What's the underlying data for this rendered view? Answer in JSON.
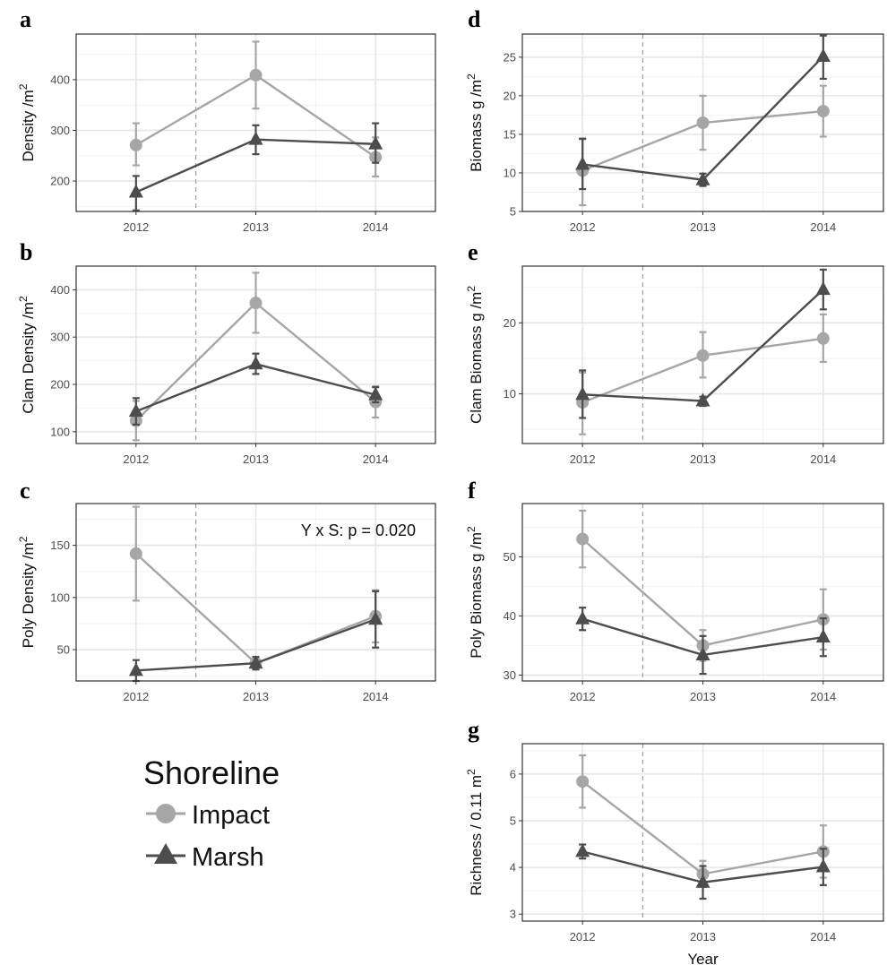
{
  "colors": {
    "impact": "#a6a6a6",
    "marsh": "#4d4d4d",
    "grid": "#e6e6e6",
    "frame": "#333333",
    "divider": "#8c8c8c"
  },
  "legend": {
    "title": "Shoreline",
    "items": [
      {
        "label": "Impact",
        "shape": "circle",
        "color": "#a6a6a6"
      },
      {
        "label": "Marsh",
        "shape": "triangle",
        "color": "#4d4d4d"
      }
    ]
  },
  "chart_data": [
    {
      "id": "a",
      "panel_label": "a",
      "type": "line",
      "ylabel": "Density /m",
      "ylabel_sup": "2",
      "xlabel": "",
      "x": [
        "2012",
        "2013",
        "2014"
      ],
      "ylim": [
        140,
        490
      ],
      "yticks": [
        200,
        300,
        400
      ],
      "annotation": "",
      "series": [
        {
          "name": "Impact",
          "values": [
            271,
            409,
            247
          ],
          "lower": [
            231,
            343,
            209
          ],
          "upper": [
            314,
            475,
            286
          ]
        },
        {
          "name": "Marsh",
          "values": [
            178,
            282,
            273
          ],
          "lower": [
            142,
            253,
            236
          ],
          "upper": [
            210,
            310,
            314
          ]
        }
      ]
    },
    {
      "id": "d",
      "panel_label": "d",
      "type": "line",
      "ylabel": "Biomass g /m",
      "ylabel_sup": "2",
      "xlabel": "",
      "x": [
        "2012",
        "2013",
        "2014"
      ],
      "ylim": [
        5,
        28
      ],
      "yticks": [
        5,
        10,
        15,
        20,
        25
      ],
      "annotation": "",
      "series": [
        {
          "name": "Impact",
          "values": [
            10.3,
            16.5,
            18.0
          ],
          "lower": [
            5.8,
            13.0,
            14.7
          ],
          "upper": [
            14.5,
            20.0,
            21.3
          ]
        },
        {
          "name": "Marsh",
          "values": [
            11.1,
            9.1,
            25.1
          ],
          "lower": [
            7.9,
            8.3,
            22.2
          ],
          "upper": [
            14.4,
            9.9,
            27.8
          ]
        }
      ]
    },
    {
      "id": "b",
      "panel_label": "b",
      "type": "line",
      "ylabel": "Clam Density /m",
      "ylabel_sup": "2",
      "xlabel": "",
      "x": [
        "2012",
        "2013",
        "2014"
      ],
      "ylim": [
        75,
        450
      ],
      "yticks": [
        100,
        200,
        300,
        400
      ],
      "annotation": "",
      "series": [
        {
          "name": "Impact",
          "values": [
            123,
            372,
            163
          ],
          "lower": [
            82,
            309,
            130
          ],
          "upper": [
            165,
            436,
            196
          ]
        },
        {
          "name": "Marsh",
          "values": [
            143,
            243,
            178
          ],
          "lower": [
            115,
            222,
            162
          ],
          "upper": [
            171,
            265,
            194
          ]
        }
      ]
    },
    {
      "id": "e",
      "panel_label": "e",
      "type": "line",
      "ylabel": "Clam Biomass g /m",
      "ylabel_sup": "2",
      "xlabel": "",
      "x": [
        "2012",
        "2013",
        "2014"
      ],
      "ylim": [
        3,
        28
      ],
      "yticks": [
        10,
        20
      ],
      "annotation": "",
      "series": [
        {
          "name": "Impact",
          "values": [
            8.8,
            15.4,
            17.8
          ],
          "lower": [
            4.3,
            12.3,
            14.5
          ],
          "upper": [
            13.0,
            18.7,
            21.2
          ]
        },
        {
          "name": "Marsh",
          "values": [
            9.9,
            9.0,
            24.7
          ],
          "lower": [
            6.6,
            8.3,
            21.9
          ],
          "upper": [
            13.3,
            9.6,
            27.5
          ]
        }
      ]
    },
    {
      "id": "c",
      "panel_label": "c",
      "type": "line",
      "ylabel": "Poly Density /m",
      "ylabel_sup": "2",
      "xlabel": "",
      "x": [
        "2012",
        "2013",
        "2014"
      ],
      "ylim": [
        20,
        190
      ],
      "yticks": [
        50,
        100,
        150
      ],
      "annotation": "Y x S: p = 0.020",
      "series": [
        {
          "name": "Impact",
          "values": [
            142,
            37,
            82
          ],
          "lower": [
            97,
            31,
            57
          ],
          "upper": [
            187,
            43,
            107
          ]
        },
        {
          "name": "Marsh",
          "values": [
            30,
            37,
            79
          ],
          "lower": [
            20,
            31,
            52
          ],
          "upper": [
            40,
            43,
            106
          ]
        }
      ]
    },
    {
      "id": "f",
      "panel_label": "f",
      "type": "line",
      "ylabel": "Poly Biomass g /m",
      "ylabel_sup": "2",
      "xlabel": "",
      "x": [
        "2012",
        "2013",
        "2014"
      ],
      "ylim": [
        29,
        59
      ],
      "yticks": [
        30,
        40,
        50
      ],
      "annotation": "",
      "series": [
        {
          "name": "Impact",
          "values": [
            53.0,
            35.0,
            39.4
          ],
          "lower": [
            48.2,
            32.4,
            34.3
          ],
          "upper": [
            57.8,
            37.6,
            44.5
          ]
        },
        {
          "name": "Marsh",
          "values": [
            39.5,
            33.4,
            36.4
          ],
          "lower": [
            37.6,
            30.2,
            33.2
          ],
          "upper": [
            41.4,
            36.6,
            39.6
          ]
        }
      ]
    },
    {
      "id": "g",
      "panel_label": "g",
      "type": "line",
      "ylabel": "Richness / 0.11 m",
      "ylabel_sup": "2",
      "xlabel": "Year",
      "x": [
        "2012",
        "2013",
        "2014"
      ],
      "ylim": [
        2.85,
        6.65
      ],
      "yticks": [
        3,
        4,
        5,
        6
      ],
      "annotation": "",
      "series": [
        {
          "name": "Impact",
          "values": [
            5.84,
            3.86,
            4.34
          ],
          "lower": [
            5.28,
            3.58,
            3.78
          ],
          "upper": [
            6.4,
            4.14,
            4.9
          ]
        },
        {
          "name": "Marsh",
          "values": [
            4.34,
            3.68,
            4.01
          ],
          "lower": [
            4.19,
            3.33,
            3.62
          ],
          "upper": [
            4.49,
            4.03,
            4.4
          ]
        }
      ]
    }
  ]
}
